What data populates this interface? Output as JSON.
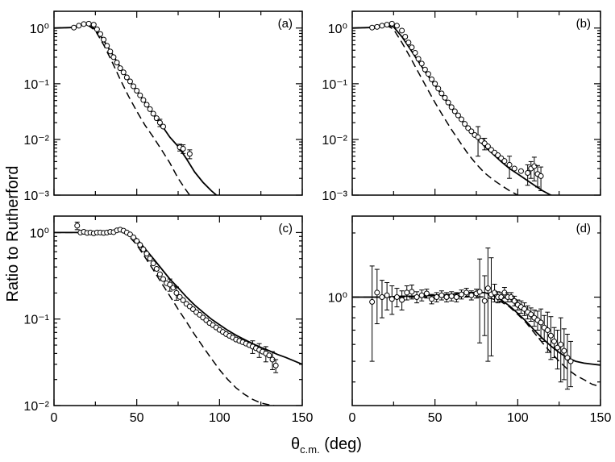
{
  "figure": {
    "ylabel": "Ratio to Rutherford",
    "xlabel_symbol": "θ",
    "xlabel_sub": "c.m.",
    "xlabel_unit": " (deg)"
  },
  "chart_data": [
    {
      "type": "line",
      "panel": "a",
      "label": "(a)",
      "yscale": "log",
      "xlim": [
        0,
        150
      ],
      "ylim": [
        0.001,
        2
      ],
      "xticks": [
        0,
        50,
        100,
        150
      ],
      "yticks": [
        1,
        0.1,
        0.01,
        0.001
      ],
      "ytick_labels": [
        "10⁰",
        "10⁻¹",
        "10⁻²",
        "10⁻³"
      ],
      "series": [
        {
          "name": "solid",
          "style": "solid",
          "x": [
            0,
            10,
            15,
            20,
            25,
            30,
            35,
            40,
            45,
            50,
            55,
            60,
            65,
            70,
            75,
            80,
            85,
            90,
            95,
            100
          ],
          "y": [
            1.0,
            1.02,
            1.12,
            1.15,
            0.95,
            0.6,
            0.35,
            0.2,
            0.12,
            0.075,
            0.046,
            0.028,
            0.018,
            0.011,
            0.0075,
            0.0045,
            0.0026,
            0.0017,
            0.0012,
            0.0009
          ]
        },
        {
          "name": "dashed",
          "style": "dashed",
          "x": [
            0,
            10,
            15,
            20,
            25,
            30,
            35,
            40,
            45,
            50,
            55,
            60,
            65,
            70,
            75,
            80,
            82
          ],
          "y": [
            1.0,
            1.02,
            1.12,
            1.15,
            0.9,
            0.5,
            0.25,
            0.12,
            0.06,
            0.032,
            0.018,
            0.011,
            0.0065,
            0.0038,
            0.002,
            0.0012,
            0.001
          ]
        }
      ],
      "points": {
        "x": [
          12,
          15,
          18,
          21,
          24,
          26,
          28,
          30,
          32,
          34,
          36,
          38,
          40,
          42,
          44,
          46,
          48,
          50,
          52,
          54,
          56,
          58,
          60,
          62,
          64,
          66,
          76,
          78,
          82
        ],
        "y": [
          1.02,
          1.1,
          1.18,
          1.2,
          1.15,
          0.95,
          0.78,
          0.62,
          0.48,
          0.38,
          0.3,
          0.24,
          0.19,
          0.16,
          0.13,
          0.11,
          0.09,
          0.075,
          0.062,
          0.051,
          0.042,
          0.035,
          0.029,
          0.024,
          0.02,
          0.017,
          0.0072,
          0.0068,
          0.0055
        ],
        "err": [
          0,
          0,
          0,
          0,
          0,
          0,
          0,
          0,
          0,
          0,
          0,
          0,
          0,
          0,
          0,
          0,
          0,
          0,
          0,
          0,
          0,
          0,
          0,
          0,
          0.003,
          0,
          0.001,
          0.0012,
          0.001
        ]
      }
    },
    {
      "type": "line",
      "panel": "b",
      "label": "(b)",
      "yscale": "log",
      "xlim": [
        0,
        150
      ],
      "ylim": [
        0.001,
        2
      ],
      "xticks": [
        0,
        50,
        100,
        150
      ],
      "yticks": [
        1,
        0.1,
        0.01,
        0.001
      ],
      "ytick_labels": [
        "10⁰",
        "10⁻¹",
        "10⁻²",
        "10⁻³"
      ],
      "series": [
        {
          "name": "solid",
          "style": "solid",
          "x": [
            0,
            10,
            15,
            20,
            25,
            30,
            35,
            40,
            45,
            50,
            55,
            60,
            65,
            70,
            75,
            80,
            85,
            90,
            95,
            100,
            105,
            110,
            115,
            120,
            122
          ],
          "y": [
            1.0,
            1.02,
            1.1,
            1.15,
            1.05,
            0.7,
            0.42,
            0.25,
            0.15,
            0.093,
            0.058,
            0.037,
            0.024,
            0.016,
            0.011,
            0.0075,
            0.0055,
            0.004,
            0.003,
            0.0024,
            0.0019,
            0.0015,
            0.0012,
            0.001,
            0.00095
          ]
        },
        {
          "name": "dashed",
          "style": "dashed",
          "x": [
            0,
            10,
            15,
            20,
            25,
            30,
            35,
            40,
            45,
            50,
            55,
            60,
            65,
            70,
            75,
            80,
            85,
            90,
            95,
            100
          ],
          "y": [
            1.0,
            1.02,
            1.1,
            1.15,
            0.95,
            0.55,
            0.3,
            0.16,
            0.085,
            0.046,
            0.026,
            0.015,
            0.009,
            0.0055,
            0.0036,
            0.0025,
            0.0019,
            0.0015,
            0.0012,
            0.001
          ]
        }
      ],
      "points": {
        "x": [
          12,
          15,
          18,
          21,
          24,
          27,
          30,
          32,
          34,
          36,
          38,
          40,
          42,
          44,
          46,
          48,
          50,
          52,
          54,
          56,
          58,
          60,
          62,
          64,
          66,
          68,
          70,
          72,
          74,
          76,
          78,
          80,
          82,
          84,
          86,
          88,
          90,
          92,
          95,
          98,
          102,
          106,
          108,
          110,
          112,
          114
        ],
        "y": [
          1.02,
          1.05,
          1.1,
          1.15,
          1.2,
          1.1,
          0.9,
          0.7,
          0.55,
          0.45,
          0.36,
          0.28,
          0.23,
          0.18,
          0.15,
          0.12,
          0.1,
          0.082,
          0.067,
          0.056,
          0.046,
          0.038,
          0.032,
          0.027,
          0.023,
          0.019,
          0.016,
          0.014,
          0.012,
          0.011,
          0.0095,
          0.0085,
          0.0075,
          0.0065,
          0.0058,
          0.0052,
          0.0046,
          0.0041,
          0.0035,
          0.003,
          0.0027,
          0.0025,
          0.003,
          0.0033,
          0.0024,
          0.0022
        ],
        "err": [
          0,
          0,
          0,
          0,
          0,
          0,
          0,
          0,
          0,
          0,
          0,
          0,
          0,
          0,
          0,
          0,
          0,
          0,
          0,
          0,
          0,
          0,
          0,
          0,
          0,
          0,
          0,
          0,
          0,
          0.006,
          0,
          0.002,
          0,
          0,
          0,
          0,
          0,
          0,
          0.0015,
          0,
          0,
          0.001,
          0.001,
          0.0015,
          0.001,
          0.001
        ]
      }
    },
    {
      "type": "line",
      "panel": "c",
      "label": "(c)",
      "yscale": "log",
      "xlim": [
        0,
        150
      ],
      "ylim": [
        0.01,
        1.55
      ],
      "xticks": [
        0,
        50,
        100,
        150
      ],
      "xtick_labels": [
        "0",
        "50",
        "100",
        "150"
      ],
      "yticks": [
        1,
        0.1,
        0.01
      ],
      "ytick_labels": [
        "10⁰",
        "10⁻¹",
        "10⁻²"
      ],
      "series": [
        {
          "name": "solid",
          "style": "solid",
          "x": [
            0,
            10,
            20,
            30,
            35,
            40,
            45,
            50,
            55,
            60,
            65,
            70,
            75,
            80,
            85,
            90,
            95,
            100,
            105,
            110,
            115,
            120,
            125,
            130,
            135,
            140,
            150
          ],
          "y": [
            1.0,
            1.0,
            1.0,
            1.02,
            1.05,
            1.08,
            1.0,
            0.85,
            0.65,
            0.5,
            0.38,
            0.29,
            0.23,
            0.18,
            0.145,
            0.12,
            0.1,
            0.086,
            0.074,
            0.065,
            0.058,
            0.052,
            0.047,
            0.043,
            0.039,
            0.036,
            0.03
          ]
        },
        {
          "name": "dashed",
          "style": "dashed",
          "x": [
            0,
            10,
            20,
            30,
            35,
            40,
            45,
            50,
            55,
            60,
            65,
            70,
            75,
            80,
            85,
            90,
            95,
            100,
            105,
            110,
            115,
            120,
            125,
            130,
            133
          ],
          "y": [
            1.0,
            1.0,
            1.0,
            1.02,
            1.05,
            1.05,
            0.92,
            0.72,
            0.52,
            0.37,
            0.26,
            0.185,
            0.13,
            0.093,
            0.066,
            0.048,
            0.035,
            0.026,
            0.02,
            0.016,
            0.0135,
            0.0118,
            0.0107,
            0.0102,
            0.01
          ]
        }
      ],
      "points": {
        "x": [
          14,
          16,
          18,
          20,
          22,
          24,
          26,
          28,
          30,
          32,
          34,
          36,
          38,
          40,
          42,
          44,
          46,
          48,
          50,
          52,
          54,
          56,
          58,
          60,
          62,
          64,
          66,
          68,
          70,
          72,
          74,
          76,
          78,
          80,
          82,
          84,
          86,
          88,
          90,
          92,
          94,
          96,
          98,
          100,
          102,
          104,
          106,
          108,
          110,
          112,
          114,
          116,
          118,
          120,
          122,
          124,
          126,
          128,
          130,
          132,
          134
        ],
        "y": [
          1.2,
          1.0,
          1.02,
          0.99,
          1.0,
          0.98,
          1.0,
          1.0,
          0.99,
          1.0,
          1.02,
          1.01,
          1.06,
          1.08,
          1.05,
          1.0,
          0.95,
          0.88,
          0.8,
          0.72,
          0.64,
          0.57,
          0.5,
          0.44,
          0.38,
          0.33,
          0.29,
          0.26,
          0.25,
          0.23,
          0.2,
          0.18,
          0.165,
          0.15,
          0.14,
          0.13,
          0.12,
          0.112,
          0.104,
          0.097,
          0.09,
          0.085,
          0.08,
          0.075,
          0.071,
          0.067,
          0.064,
          0.061,
          0.058,
          0.056,
          0.054,
          0.052,
          0.05,
          0.048,
          0.046,
          0.044,
          0.042,
          0.04,
          0.038,
          0.034,
          0.029
        ],
        "err": [
          0.12,
          0,
          0,
          0,
          0,
          0,
          0,
          0,
          0,
          0,
          0,
          0,
          0,
          0,
          0,
          0,
          0,
          0,
          0,
          0,
          0,
          0,
          0,
          0,
          0,
          0,
          0,
          0,
          0.04,
          0,
          0.035,
          0,
          0,
          0,
          0,
          0,
          0,
          0,
          0,
          0,
          0,
          0,
          0,
          0,
          0,
          0,
          0,
          0,
          0,
          0,
          0,
          0,
          0,
          0.008,
          0,
          0.008,
          0,
          0.008,
          0,
          0.008,
          0.005
        ]
      }
    },
    {
      "type": "line",
      "panel": "d",
      "label": "(d)",
      "yscale": "log",
      "xlim": [
        0,
        150
      ],
      "ylim": [
        0.31,
        2.4
      ],
      "xticks": [
        0,
        50,
        100,
        150
      ],
      "xtick_labels": [
        "0",
        "50",
        "100",
        "150"
      ],
      "yticks": [
        1
      ],
      "ytick_labels": [
        "10⁰"
      ],
      "series": [
        {
          "name": "solid",
          "style": "solid",
          "x": [
            0,
            10,
            20,
            30,
            40,
            50,
            60,
            70,
            80,
            85,
            90,
            95,
            100,
            105,
            110,
            115,
            120,
            125,
            130,
            135,
            140,
            145,
            150
          ],
          "y": [
            1.0,
            1.0,
            1.0,
            1.01,
            1.01,
            1.02,
            1.03,
            1.05,
            1.05,
            1.02,
            0.97,
            0.91,
            0.84,
            0.77,
            0.7,
            0.64,
            0.59,
            0.55,
            0.52,
            0.5,
            0.49,
            0.485,
            0.48
          ]
        },
        {
          "name": "dashed",
          "style": "dashed",
          "x": [
            0,
            10,
            20,
            30,
            40,
            50,
            60,
            70,
            80,
            85,
            90,
            95,
            100,
            105,
            110,
            115,
            120,
            125,
            130,
            135,
            140,
            145,
            150
          ],
          "y": [
            1.0,
            1.0,
            1.0,
            1.0,
            1.0,
            1.0,
            1.0,
            1.01,
            1.0,
            0.98,
            0.95,
            0.9,
            0.83,
            0.76,
            0.68,
            0.61,
            0.55,
            0.5,
            0.46,
            0.43,
            0.41,
            0.39,
            0.38
          ]
        }
      ],
      "points": {
        "x": [
          12,
          15,
          18,
          21,
          24,
          27,
          30,
          33,
          36,
          39,
          42,
          45,
          48,
          51,
          54,
          57,
          60,
          63,
          66,
          69,
          72,
          75,
          77,
          80,
          82,
          84,
          86,
          88,
          90,
          92,
          94,
          96,
          98,
          100,
          102,
          104,
          106,
          108,
          110,
          112,
          114,
          116,
          118,
          120,
          122,
          124,
          126,
          128,
          130,
          132
        ],
        "y": [
          0.95,
          1.05,
          1.0,
          1.02,
          0.98,
          1.0,
          0.97,
          1.05,
          1.06,
          1.0,
          1.02,
          1.04,
          0.98,
          1.0,
          1.02,
          1.0,
          1.01,
          1.0,
          1.03,
          1.05,
          1.02,
          1.04,
          1.06,
          0.96,
          1.1,
          1.03,
          1.05,
          1.0,
          1.0,
          1.05,
          1.0,
          1.0,
          0.96,
          0.92,
          0.9,
          0.88,
          0.85,
          0.83,
          0.8,
          0.78,
          0.76,
          0.72,
          0.7,
          0.66,
          0.62,
          0.58,
          0.6,
          0.56,
          0.52,
          0.5
        ],
        "err": [
          0.45,
          0.3,
          0.2,
          0.15,
          0.15,
          0.1,
          0.1,
          0.08,
          0.08,
          0.06,
          0.06,
          0.05,
          0.05,
          0.05,
          0.05,
          0.05,
          0.05,
          0.05,
          0.05,
          0.05,
          0.05,
          0.05,
          0.45,
          0.3,
          0.6,
          0.5,
          0.1,
          0.06,
          0.05,
          0.06,
          0.05,
          0.05,
          0.05,
          0.05,
          0.06,
          0.06,
          0.06,
          0.06,
          0.07,
          0.08,
          0.12,
          0.1,
          0.15,
          0.15,
          0.1,
          0.12,
          0.2,
          0.15,
          0.15,
          0.12
        ]
      }
    }
  ]
}
